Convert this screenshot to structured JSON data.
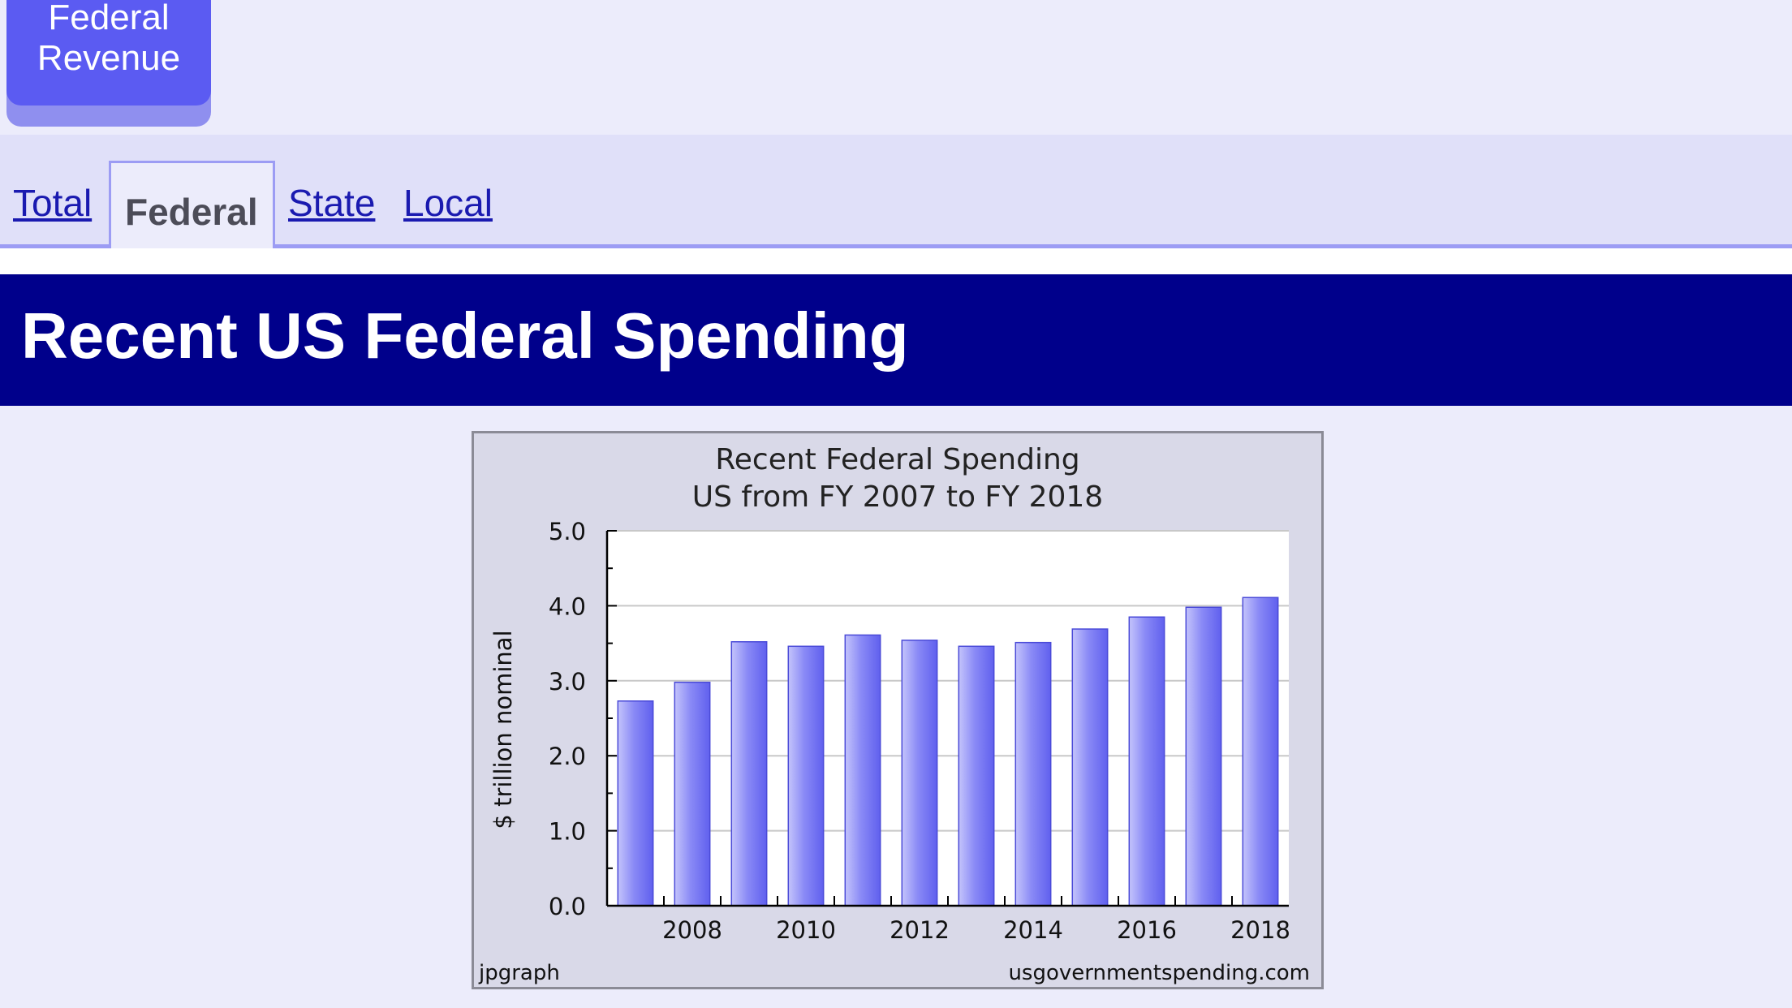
{
  "top_button": {
    "line1": "Federal",
    "line2": "Revenue"
  },
  "tabs": [
    {
      "label": "Total",
      "active": false
    },
    {
      "label": "Federal",
      "active": true
    },
    {
      "label": "State",
      "active": false
    },
    {
      "label": "Local",
      "active": false
    }
  ],
  "page_title": "Recent US Federal Spending",
  "chart_credits": {
    "left": "jpgraph",
    "right": "usgovernmentspending.com"
  },
  "colors": {
    "accent": "#00008b",
    "button": "#5b5bf2",
    "bar": "#8080f5"
  },
  "chart_data": {
    "type": "bar",
    "title": "Recent Federal Spending",
    "subtitle": "US from FY 2007 to FY 2018",
    "xlabel": "",
    "ylabel": "$ trillion nominal",
    "ylim": [
      0,
      5
    ],
    "yticks": [
      "0.0",
      "1.0",
      "2.0",
      "3.0",
      "4.0",
      "5.0"
    ],
    "categories": [
      "2007",
      "2008",
      "2009",
      "2010",
      "2011",
      "2012",
      "2013",
      "2014",
      "2015",
      "2016",
      "2017",
      "2018"
    ],
    "x_tick_labels": [
      "2008",
      "2010",
      "2012",
      "2014",
      "2016",
      "2018"
    ],
    "values": [
      2.73,
      2.98,
      3.52,
      3.46,
      3.61,
      3.54,
      3.46,
      3.51,
      3.69,
      3.85,
      3.98,
      4.11
    ],
    "grid": true,
    "legend": "none"
  }
}
